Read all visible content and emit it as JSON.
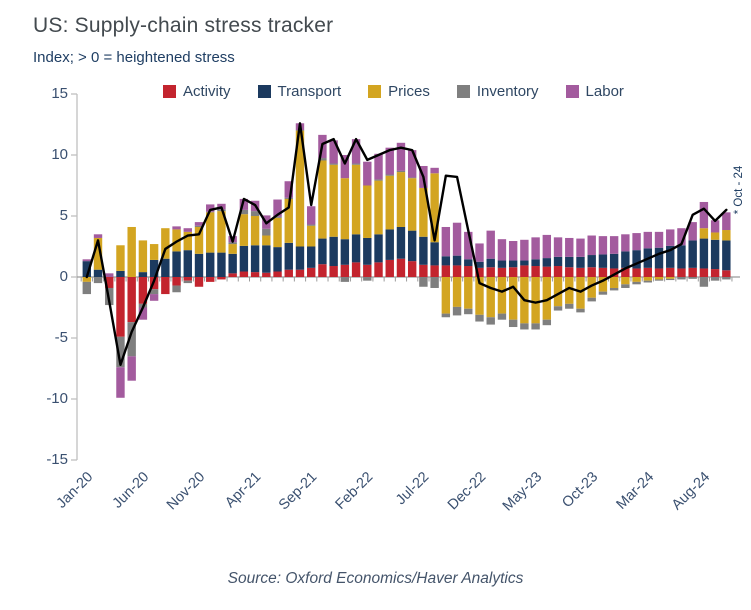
{
  "header": {
    "title": "US: Supply-chain stress tracker",
    "subtitle": "Index; > 0 = heightened stress"
  },
  "footer": {
    "source": "Source: Oxford Economics/Haver Analytics"
  },
  "chart_data": {
    "type": "stacked_bar_with_line",
    "title": "US: Supply-chain stress tracker",
    "subtitle": "Index; > 0 = heightened stress",
    "annotation": "* Oct - 24",
    "ylim": [
      -15,
      15
    ],
    "y_tick_labels": [
      "15",
      "10",
      "5",
      "0",
      "-5",
      "-10",
      "-15"
    ],
    "x_tick_labels": [
      "Jan-20",
      "Jun-20",
      "Nov-20",
      "Apr-21",
      "Sep-21",
      "Feb-22",
      "Jul-22",
      "Dec-22",
      "May-23",
      "Oct-23",
      "Mar-24",
      "Aug-24"
    ],
    "legend_position": "top",
    "grid": false,
    "categories": [
      "Jan-20",
      "Feb-20",
      "Mar-20",
      "Apr-20",
      "May-20",
      "Jun-20",
      "Jul-20",
      "Aug-20",
      "Sep-20",
      "Oct-20",
      "Nov-20",
      "Dec-20",
      "Jan-21",
      "Feb-21",
      "Mar-21",
      "Apr-21",
      "May-21",
      "Jun-21",
      "Jul-21",
      "Aug-21",
      "Sep-21",
      "Oct-21",
      "Nov-21",
      "Dec-21",
      "Jan-22",
      "Feb-22",
      "Mar-22",
      "Apr-22",
      "May-22",
      "Jun-22",
      "Jul-22",
      "Aug-22",
      "Sep-22",
      "Oct-22",
      "Nov-22",
      "Dec-22",
      "Jan-23",
      "Feb-23",
      "Mar-23",
      "Apr-23",
      "May-23",
      "Jun-23",
      "Jul-23",
      "Aug-23",
      "Sep-23",
      "Oct-23",
      "Nov-23",
      "Dec-23",
      "Jan-24",
      "Feb-24",
      "Mar-24",
      "Apr-24",
      "May-24",
      "Jun-24",
      "Jul-24",
      "Aug-24",
      "Sep-24",
      "Oct-24"
    ],
    "series": [
      {
        "name": "Activity",
        "color": "#C3242E",
        "values": [
          0,
          0,
          -0.9,
          -4.9,
          -3.7,
          -2.2,
          -1.0,
          -1.4,
          -0.7,
          -0.3,
          -0.8,
          -0.4,
          -0.2,
          0.3,
          0.45,
          0.4,
          0.35,
          0.45,
          0.6,
          0.6,
          0.75,
          1.05,
          0.9,
          1.0,
          1.2,
          1.0,
          1.2,
          1.4,
          1.5,
          1.3,
          1.0,
          0.95,
          0.95,
          0.95,
          0.9,
          0.75,
          0.8,
          0.75,
          0.8,
          0.95,
          0.9,
          0.85,
          0.9,
          0.8,
          0.75,
          0.8,
          0.75,
          0.7,
          0.75,
          0.7,
          0.75,
          0.7,
          0.75,
          0.7,
          0.75,
          0.7,
          0.65,
          0.55
        ]
      },
      {
        "name": "Transport",
        "color": "#1C3A5F",
        "values": [
          1.3,
          0.6,
          0,
          0.5,
          0,
          0.4,
          1.4,
          1.5,
          2.1,
          2.2,
          1.9,
          2.0,
          2.0,
          1.6,
          2.1,
          2.2,
          2.25,
          2.0,
          2.2,
          1.9,
          1.75,
          2.1,
          2.4,
          2.1,
          2.3,
          2.2,
          2.3,
          2.5,
          2.6,
          2.5,
          2.3,
          1.9,
          0.75,
          0.8,
          0.55,
          0.5,
          0.7,
          0.6,
          0.55,
          0.4,
          0.55,
          0.7,
          0.75,
          0.85,
          0.9,
          1.0,
          1.1,
          1.2,
          1.35,
          1.5,
          1.6,
          1.7,
          1.8,
          1.9,
          2.25,
          2.45,
          2.4,
          2.45
        ]
      },
      {
        "name": "Prices",
        "color": "#D3A521",
        "values": [
          -0.4,
          2.6,
          0,
          2.1,
          4.1,
          2.6,
          1.3,
          2.5,
          1.8,
          1.5,
          2.2,
          3.3,
          3.4,
          0.8,
          2.6,
          2.4,
          0.8,
          2.4,
          3.6,
          9.5,
          1.7,
          6.4,
          5.9,
          5.0,
          5.7,
          4.3,
          4.4,
          4.4,
          4.5,
          4.3,
          4.0,
          5.65,
          -3.0,
          -2.45,
          -2.6,
          -3.1,
          -3.3,
          -3.0,
          -3.5,
          -3.8,
          -3.8,
          -3.5,
          -2.4,
          -2.2,
          -2.6,
          -1.7,
          -1.2,
          -0.9,
          -0.6,
          -0.4,
          -0.3,
          -0.2,
          -0.15,
          0,
          0,
          0.85,
          0.6,
          0.85
        ]
      },
      {
        "name": "Inventory",
        "color": "#7F7F7F",
        "values": [
          -1.0,
          -0.5,
          -1.4,
          -2.5,
          -2.8,
          -0.3,
          -0.4,
          0,
          -0.55,
          -0.2,
          0.1,
          0.05,
          0.15,
          0.15,
          0.35,
          0.4,
          0.55,
          0.1,
          0.1,
          0.05,
          0.1,
          0.2,
          0.1,
          -0.4,
          0.1,
          -0.3,
          0.1,
          0.1,
          0.1,
          0.05,
          -0.8,
          -0.9,
          -0.3,
          -0.7,
          -0.45,
          -0.55,
          -0.6,
          -0.5,
          -0.6,
          -0.5,
          -0.5,
          -0.45,
          -0.35,
          -0.4,
          -0.3,
          -0.3,
          -0.25,
          -0.2,
          -0.3,
          -0.2,
          -0.15,
          -0.1,
          -0.1,
          -0.2,
          -0.15,
          -0.8,
          -0.3,
          -0.2
        ]
      },
      {
        "name": "Labor",
        "color": "#A35B9E",
        "values": [
          0.15,
          0.3,
          0.3,
          -2.5,
          -2.0,
          -1.0,
          -0.55,
          0,
          0.25,
          0.3,
          0.3,
          0.6,
          0.45,
          0.5,
          0.9,
          0.85,
          1.1,
          1.4,
          1.35,
          0.55,
          1.5,
          1.9,
          1.9,
          1.9,
          2.0,
          1.95,
          2.1,
          2.2,
          2.3,
          2.25,
          1.8,
          0.45,
          2.4,
          2.7,
          2.25,
          1.5,
          2.3,
          1.75,
          1.6,
          1.7,
          1.8,
          1.9,
          1.6,
          1.55,
          1.5,
          1.6,
          1.5,
          1.45,
          1.4,
          1.4,
          1.35,
          1.3,
          1.35,
          1.4,
          1.5,
          2.15,
          1.0,
          1.45
        ]
      }
    ],
    "line": {
      "color": "#000000",
      "values": [
        0,
        3.0,
        -2.0,
        -7.2,
        -4.5,
        -2.5,
        -0.3,
        2.3,
        2.9,
        3.4,
        3.5,
        5.5,
        5.7,
        2.9,
        6.4,
        5.9,
        4.4,
        5.1,
        5.7,
        12.6,
        5.9,
        10.9,
        11.3,
        9.3,
        11.3,
        9.6,
        10.0,
        10.4,
        10.6,
        10.4,
        8.2,
        3.0,
        8.3,
        8.2,
        3.8,
        -0.5,
        -0.9,
        -1.2,
        -0.8,
        -1.9,
        -2.1,
        -1.9,
        -1.4,
        -0.9,
        -1.2,
        -0.7,
        -0.3,
        0.2,
        0.7,
        1.1,
        1.5,
        1.9,
        2.2,
        2.7,
        5.1,
        5.6,
        4.6,
        5.5
      ]
    }
  }
}
